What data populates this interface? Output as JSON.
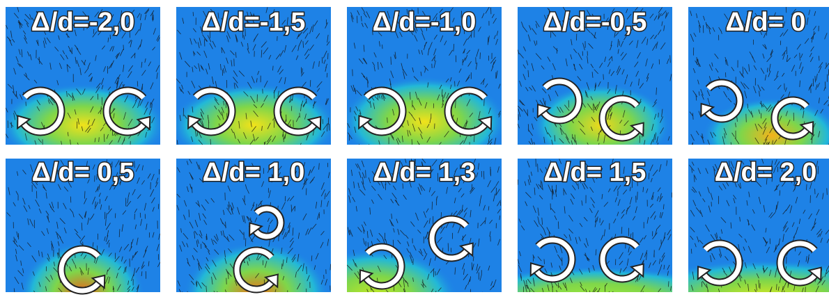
{
  "panels": [
    {
      "label": "Δ/d=-2,0"
    },
    {
      "label": "Δ/d=-1,5"
    },
    {
      "label": "Δ/d=-1,0"
    },
    {
      "label": "Δ/d=-0,5"
    },
    {
      "label": "Δ/d= 0"
    },
    {
      "label": "Δ/d= 0,5"
    },
    {
      "label": "Δ/d= 1,0"
    },
    {
      "label": "Δ/d= 1,3"
    },
    {
      "label": "Δ/d= 1,5"
    },
    {
      "label": "Δ/d= 2,0"
    }
  ]
}
